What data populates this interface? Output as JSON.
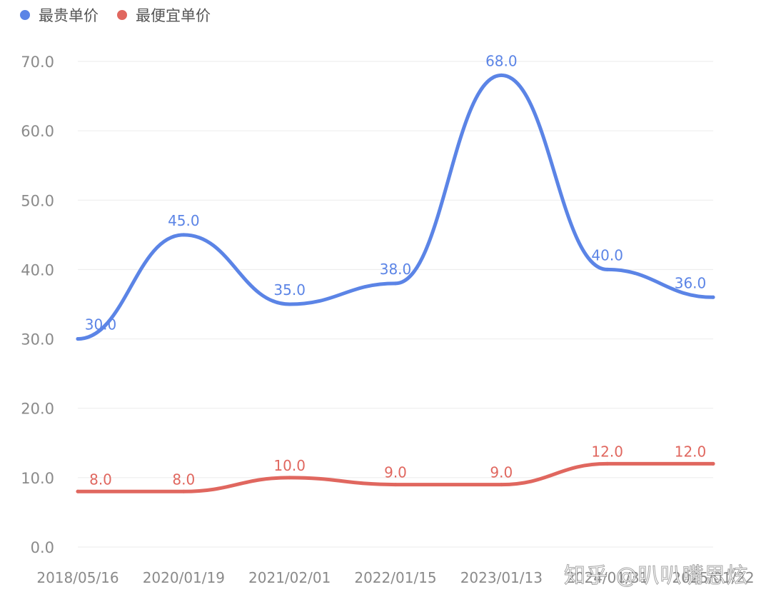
{
  "chart_data": {
    "type": "line",
    "categories": [
      "2018/05/16",
      "2020/01/19",
      "2021/02/01",
      "2022/01/15",
      "2023/01/13",
      "2024/01/31",
      "2025/01/22"
    ],
    "series": [
      {
        "name": "最贵单价",
        "color": "#5B84E6",
        "values": [
          30,
          45,
          35,
          38,
          68,
          40,
          36
        ],
        "labels": [
          "30.0",
          "45.0",
          "35.0",
          "38.0",
          "68.0",
          "40.0",
          "36.0"
        ]
      },
      {
        "name": "最便宜单价",
        "color": "#E0675F",
        "values": [
          8,
          8,
          10,
          9,
          9,
          12,
          12
        ],
        "labels": [
          "8.0",
          "8.0",
          "10.0",
          "9.0",
          "9.0",
          "12.0",
          "12.0"
        ]
      }
    ],
    "yticks": [
      "0.0",
      "10.0",
      "20.0",
      "30.0",
      "40.0",
      "50.0",
      "60.0",
      "70.0"
    ],
    "ylim": [
      0,
      70
    ],
    "grid": true,
    "legend_position": "top-left",
    "title": "",
    "xlabel": "",
    "ylabel": ""
  },
  "watermark": "知乎 @叭叭嘴思炫"
}
